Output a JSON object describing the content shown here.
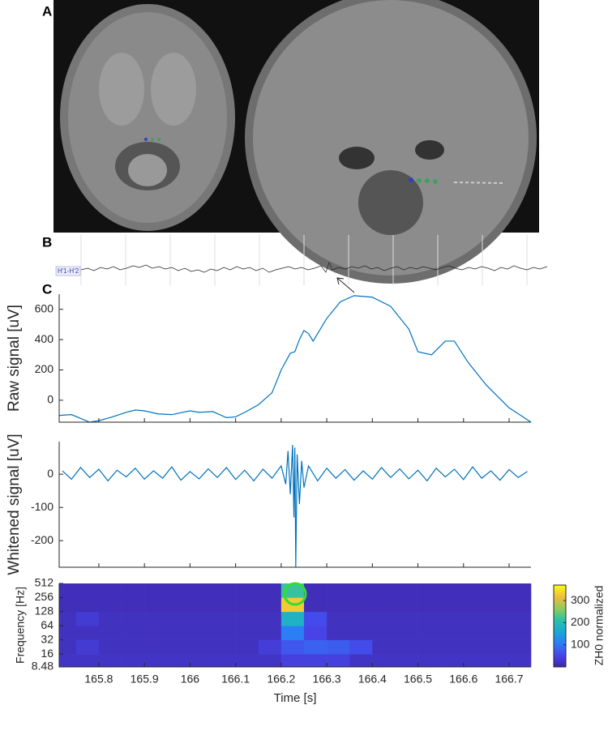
{
  "panel_labels": [
    "A",
    "B",
    "C"
  ],
  "channel_label": "H'1-H'2",
  "chart_data": [
    {
      "type": "line",
      "ylabel": "Raw signal [uV]",
      "color": "#0072bd",
      "xlim": [
        165.713,
        166.748
      ],
      "ylim": [
        -145,
        700
      ],
      "yticks": [
        0,
        200,
        400,
        600
      ],
      "xticks": [
        165.8,
        165.9,
        166,
        166.1,
        166.2,
        166.3,
        166.4,
        166.5,
        166.6,
        166.7
      ],
      "show_xtick_labels": false,
      "x": [
        165.713,
        165.74,
        165.76,
        165.78,
        165.8,
        165.83,
        165.86,
        165.88,
        165.9,
        165.93,
        165.96,
        166.0,
        166.02,
        166.05,
        166.08,
        166.1,
        166.12,
        166.15,
        166.18,
        166.2,
        166.22,
        166.23,
        166.24,
        166.25,
        166.26,
        166.27,
        166.3,
        166.33,
        166.36,
        166.4,
        166.44,
        166.48,
        166.5,
        166.53,
        166.56,
        166.58,
        166.61,
        166.65,
        166.7,
        166.748
      ],
      "values": [
        -100,
        -95,
        -120,
        -145,
        -135,
        -110,
        -80,
        -65,
        -70,
        -90,
        -95,
        -70,
        -80,
        -75,
        -115,
        -110,
        -80,
        -30,
        50,
        200,
        310,
        320,
        400,
        460,
        440,
        390,
        540,
        650,
        690,
        680,
        620,
        470,
        320,
        300,
        390,
        390,
        250,
        100,
        -50,
        -145
      ]
    },
    {
      "type": "line",
      "ylabel": "Whitened signal [uV]",
      "color": "#0072bd",
      "xlim": [
        165.713,
        166.748
      ],
      "ylim": [
        -280,
        98
      ],
      "yticks": [
        -200,
        -100,
        0
      ],
      "xticks": [
        165.8,
        165.9,
        166,
        166.1,
        166.2,
        166.3,
        166.4,
        166.5,
        166.6,
        166.7
      ],
      "show_xtick_labels": false,
      "x": [
        165.72,
        165.74,
        165.76,
        165.78,
        165.8,
        165.82,
        165.84,
        165.86,
        165.88,
        165.9,
        165.92,
        165.94,
        165.96,
        165.98,
        166,
        166.02,
        166.04,
        166.06,
        166.08,
        166.1,
        166.12,
        166.14,
        166.16,
        166.18,
        166.2,
        166.21,
        166.215,
        166.22,
        166.225,
        166.228,
        166.23,
        166.232,
        166.235,
        166.24,
        166.245,
        166.25,
        166.26,
        166.28,
        166.3,
        166.32,
        166.34,
        166.36,
        166.38,
        166.4,
        166.42,
        166.44,
        166.46,
        166.48,
        166.5,
        166.52,
        166.54,
        166.56,
        166.58,
        166.6,
        166.62,
        166.64,
        166.66,
        166.68,
        166.7,
        166.72,
        166.74
      ],
      "values": [
        10,
        -15,
        20,
        -10,
        15,
        -20,
        12,
        -8,
        18,
        -15,
        10,
        -12,
        22,
        -18,
        8,
        -14,
        16,
        -10,
        20,
        -16,
        12,
        -20,
        15,
        -12,
        25,
        -30,
        70,
        -60,
        88,
        -130,
        80,
        -280,
        60,
        -90,
        40,
        -40,
        25,
        -20,
        18,
        -12,
        14,
        -18,
        10,
        -15,
        20,
        -10,
        16,
        -14,
        12,
        -20,
        18,
        -8,
        15,
        -16,
        22,
        -12,
        10,
        -18,
        14,
        -10,
        8
      ]
    },
    {
      "type": "heatmap",
      "ylabel": "Frequency [Hz]",
      "xlabel": "Time [s]",
      "colorbar_label": "ZH0 normalized",
      "xlim": [
        165.713,
        166.748
      ],
      "ylim": [
        8.48,
        512
      ],
      "log_y": true,
      "yticks": [
        8.48,
        16,
        32,
        64,
        128,
        256,
        512
      ],
      "xticks": [
        165.8,
        165.9,
        166,
        166.1,
        166.2,
        166.3,
        166.4,
        166.5,
        166.6,
        166.7
      ],
      "show_xtick_labels": true,
      "clim": [
        0,
        370
      ],
      "cticks": [
        100,
        200,
        300
      ],
      "colormap": [
        "#3e26a8",
        "#4745e8",
        "#2d7cf6",
        "#19a7d8",
        "#2ac0a8",
        "#8ccc5c",
        "#f0bb3e",
        "#f9fb15"
      ],
      "xbins": [
        165.713,
        165.75,
        165.8,
        165.85,
        165.9,
        165.95,
        166.0,
        166.05,
        166.1,
        166.15,
        166.2,
        166.25,
        166.3,
        166.35,
        166.4,
        166.45,
        166.5,
        166.55,
        166.6,
        166.65,
        166.7,
        166.748
      ],
      "ybins": [
        8.48,
        16,
        32,
        64,
        128,
        256,
        512
      ],
      "z": [
        [
          25,
          25,
          25,
          25,
          25,
          25,
          25,
          25,
          25,
          25,
          45,
          45,
          45,
          25,
          25,
          25,
          25,
          25,
          25,
          25,
          25
        ],
        [
          20,
          35,
          20,
          20,
          20,
          20,
          20,
          20,
          20,
          40,
          70,
          80,
          75,
          60,
          20,
          20,
          20,
          20,
          20,
          20,
          20
        ],
        [
          20,
          20,
          20,
          20,
          20,
          20,
          20,
          20,
          20,
          20,
          110,
          50,
          20,
          20,
          20,
          20,
          20,
          20,
          20,
          20,
          20
        ],
        [
          20,
          35,
          20,
          20,
          20,
          20,
          20,
          20,
          20,
          20,
          180,
          60,
          20,
          20,
          20,
          20,
          20,
          20,
          20,
          20,
          20
        ],
        [
          15,
          15,
          15,
          15,
          15,
          15,
          15,
          15,
          15,
          15,
          330,
          15,
          15,
          15,
          15,
          15,
          15,
          15,
          15,
          15,
          15
        ],
        [
          15,
          15,
          15,
          15,
          15,
          15,
          15,
          15,
          15,
          15,
          220,
          15,
          15,
          15,
          15,
          15,
          15,
          15,
          15,
          15,
          15
        ]
      ]
    }
  ]
}
